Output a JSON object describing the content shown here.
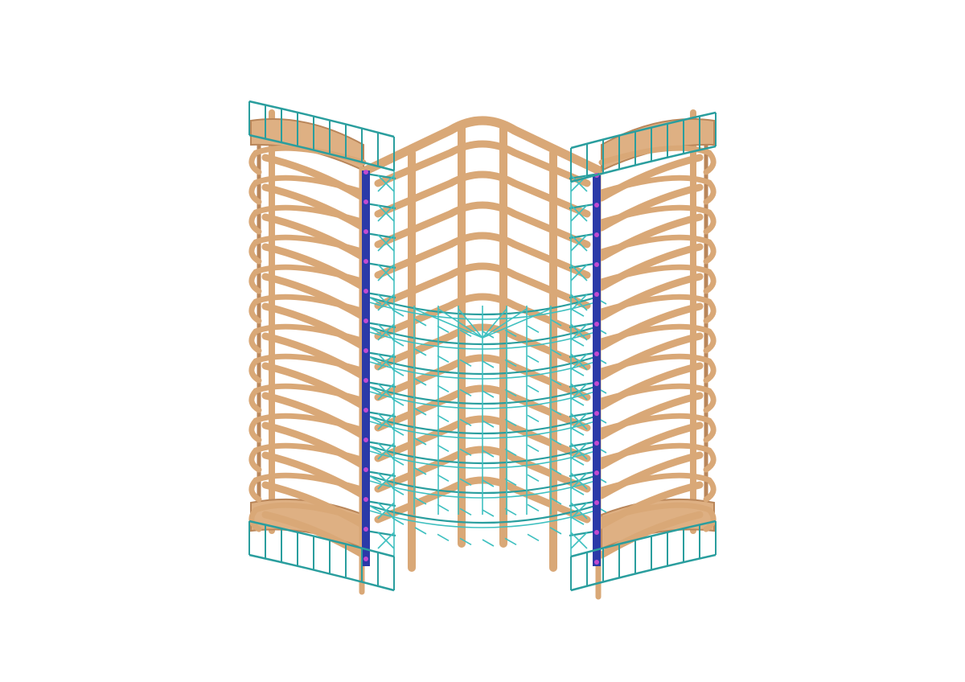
{
  "figure": {
    "subject": "structural-frame-3d-model",
    "colors": {
      "background": "#ffffff",
      "timber": "#d9a877",
      "timber_edge": "#b9865a",
      "timber_slab": "#deb083",
      "steel_truss": "#3fc0c0",
      "steel_truss_dark": "#2a9e9e",
      "steel_column": "#2b3aa8",
      "node": "#c04ad0"
    },
    "levels": 13
  }
}
